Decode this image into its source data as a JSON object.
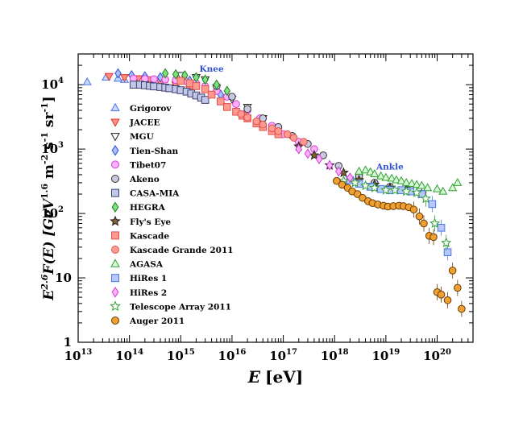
{
  "chart_data": {
    "type": "scatter",
    "title": "",
    "xlabel": "E",
    "xlabel_unit": "[eV]",
    "ylabel_prefix": "E",
    "ylabel_exp": "2.6",
    "ylabel_mid": "F(E) [GeV",
    "ylabel_unit_exp": "1.6",
    "ylabel_m": " m",
    "ylabel_m_exp": "-2",
    "ylabel_s": " s",
    "ylabel_s_exp": "-1",
    "ylabel_sr": " sr",
    "ylabel_sr_exp": "-1",
    "ylabel_close": "]",
    "xscale": "log",
    "yscale": "log",
    "xlim": [
      10000000000000.0,
      5e+20
    ],
    "ylim": [
      1,
      30000
    ],
    "x_ticks": [
      {
        "base": "10",
        "exp": "13",
        "value": 10000000000000.0
      },
      {
        "base": "10",
        "exp": "14",
        "value": 100000000000000.0
      },
      {
        "base": "10",
        "exp": "15",
        "value": 1000000000000000.0
      },
      {
        "base": "10",
        "exp": "16",
        "value": 1e+16
      },
      {
        "base": "10",
        "exp": "17",
        "value": 1e+17
      },
      {
        "base": "10",
        "exp": "18",
        "value": 1e+18
      },
      {
        "base": "10",
        "exp": "19",
        "value": 1e+19
      },
      {
        "base": "10",
        "exp": "20",
        "value": 1e+20
      }
    ],
    "y_ticks": [
      {
        "base": "1",
        "exp": "",
        "value": 1
      },
      {
        "base": "10",
        "exp": "",
        "value": 10
      },
      {
        "base": "10",
        "exp": "2",
        "value": 100
      },
      {
        "base": "10",
        "exp": "3",
        "value": 1000
      },
      {
        "base": "10",
        "exp": "4",
        "value": 10000
      }
    ],
    "annotations": [
      {
        "text": "Knee",
        "x": 4000000000000000.0,
        "y": 16000,
        "color": "#3050d0"
      },
      {
        "text": "Ankle",
        "x": 1.2e+19,
        "y": 480,
        "color": "#3050d0"
      }
    ],
    "legend_position": "left",
    "series": [
      {
        "name": "Grigorov",
        "marker": "triangle-up",
        "color": "#4a78e8",
        "fill": "#c8d8ff",
        "points": [
          [
            15000000000000.0,
            11000
          ],
          [
            35000000000000.0,
            13000
          ],
          [
            60000000000000.0,
            12500
          ],
          [
            80000000000000.0,
            12000
          ],
          [
            130000000000000.0,
            11000
          ]
        ]
      },
      {
        "name": "JACEE",
        "marker": "triangle-down",
        "color": "#e03030",
        "fill": "#ff9080",
        "points": [
          [
            40000000000000.0,
            13500
          ],
          [
            80000000000000.0,
            13000
          ],
          [
            150000000000000.0,
            12500
          ],
          [
            250000000000000.0,
            12000
          ],
          [
            400000000000000.0,
            11000
          ],
          [
            800000000000000.0,
            10000
          ],
          [
            1500000000000000.0,
            8500
          ]
        ]
      },
      {
        "name": "MGU",
        "marker": "triangle-down",
        "color": "#222222",
        "fill": "#ffffff",
        "points": [
          [
            1000000000000000.0,
            14000
          ],
          [
            2000000000000000.0,
            13000
          ],
          [
            3000000000000000.0,
            12000
          ],
          [
            5000000000000000.0,
            9000
          ],
          [
            1e+16,
            6000
          ],
          [
            2e+16,
            4500
          ],
          [
            4e+16,
            3000
          ]
        ]
      },
      {
        "name": "Tien-Shan",
        "marker": "diamond",
        "color": "#3050d0",
        "fill": "#a8c0ff",
        "points": [
          [
            60000000000000.0,
            15000
          ],
          [
            110000000000000.0,
            14000
          ],
          [
            200000000000000.0,
            13500
          ],
          [
            400000000000000.0,
            13000
          ],
          [
            800000000000000.0,
            12500
          ],
          [
            1500000000000000.0,
            11500
          ],
          [
            3000000000000000.0,
            9500
          ],
          [
            6000000000000000.0,
            7000
          ]
        ]
      },
      {
        "name": "Tibet07",
        "marker": "circle",
        "color": "#d040d0",
        "fill": "#ffb0ff",
        "points": [
          [
            120000000000000.0,
            12500
          ],
          [
            200000000000000.0,
            12300
          ],
          [
            300000000000000.0,
            12200
          ],
          [
            500000000000000.0,
            12000
          ],
          [
            800000000000000.0,
            11800
          ],
          [
            1200000000000000.0,
            11500
          ],
          [
            2000000000000000.0,
            10500
          ],
          [
            3000000000000000.0,
            9500
          ],
          [
            5000000000000000.0,
            8000
          ],
          [
            8000000000000000.0,
            6500
          ],
          [
            1.2e+16,
            5000
          ],
          [
            2e+16,
            4000
          ],
          [
            3.5e+16,
            3000
          ],
          [
            6e+16,
            2300
          ],
          [
            1e+17,
            1700
          ],
          [
            2e+17,
            1300
          ],
          [
            4e+17,
            1000
          ]
        ]
      },
      {
        "name": "Akeno",
        "marker": "circle",
        "color": "#333333",
        "fill": "#c8c8e0",
        "points": [
          [
            5000000000000000.0,
            9500
          ],
          [
            1e+16,
            6500
          ],
          [
            2e+16,
            4200
          ],
          [
            4e+16,
            3000
          ],
          [
            8e+16,
            2200
          ],
          [
            1.5e+17,
            1600
          ],
          [
            3e+17,
            1200
          ],
          [
            6e+17,
            800
          ],
          [
            1.2e+18,
            550
          ],
          [
            3e+18,
            380
          ],
          [
            6e+18,
            300
          ],
          [
            1.2e+19,
            260
          ]
        ]
      },
      {
        "name": "CASA-MIA",
        "marker": "square",
        "color": "#404070",
        "fill": "#c0c8e8",
        "points": [
          [
            120000000000000.0,
            10000
          ],
          [
            160000000000000.0,
            10000
          ],
          [
            200000000000000.0,
            9800
          ],
          [
            250000000000000.0,
            9600
          ],
          [
            300000000000000.0,
            9400
          ],
          [
            400000000000000.0,
            9200
          ],
          [
            500000000000000.0,
            9000
          ],
          [
            600000000000000.0,
            8800
          ],
          [
            800000000000000.0,
            8500
          ],
          [
            1000000000000000.0,
            8200
          ],
          [
            1300000000000000.0,
            7800
          ],
          [
            1600000000000000.0,
            7300
          ],
          [
            2000000000000000.0,
            6800
          ],
          [
            2500000000000000.0,
            6300
          ],
          [
            3000000000000000.0,
            5800
          ]
        ]
      },
      {
        "name": "HEGRA",
        "marker": "diamond",
        "color": "#208020",
        "fill": "#80e080",
        "points": [
          [
            500000000000000.0,
            15000
          ],
          [
            800000000000000.0,
            14500
          ],
          [
            1200000000000000.0,
            14000
          ],
          [
            2000000000000000.0,
            13000
          ],
          [
            3000000000000000.0,
            12000
          ],
          [
            5000000000000000.0,
            10000
          ],
          [
            8000000000000000.0,
            8000
          ]
        ]
      },
      {
        "name": "Fly's Eye",
        "marker": "star",
        "color": "#222222",
        "fill": "#806030",
        "points": [
          [
            2e+17,
            1100
          ],
          [
            4e+17,
            800
          ],
          [
            8e+17,
            560
          ],
          [
            1.5e+18,
            430
          ],
          [
            3e+18,
            330
          ],
          [
            6e+18,
            280
          ],
          [
            1.2e+19,
            250
          ],
          [
            2.5e+19,
            240
          ],
          [
            5e+19,
            200
          ]
        ]
      },
      {
        "name": "Kascade",
        "marker": "square",
        "color": "#e05050",
        "fill": "#ff9a90",
        "points": [
          [
            1000000000000000.0,
            11500
          ],
          [
            1500000000000000.0,
            10500
          ],
          [
            2000000000000000.0,
            9500
          ],
          [
            3000000000000000.0,
            8500
          ],
          [
            4000000000000000.0,
            7000
          ],
          [
            6000000000000000.0,
            5500
          ],
          [
            8000000000000000.0,
            4500
          ],
          [
            1.2e+16,
            3800
          ],
          [
            1.6e+16,
            3300
          ],
          [
            2e+16,
            3000
          ],
          [
            3e+16,
            2500
          ],
          [
            4e+16,
            2200
          ],
          [
            6e+16,
            1900
          ],
          [
            8e+16,
            1700
          ]
        ]
      },
      {
        "name": "Kascade Grande 2011",
        "marker": "circle",
        "color": "#e05050",
        "fill": "#ff9a90",
        "points": [
          [
            1.5e+16,
            3500
          ],
          [
            2e+16,
            3100
          ],
          [
            3e+16,
            2700
          ],
          [
            4e+16,
            2400
          ],
          [
            6e+16,
            2100
          ],
          [
            8e+16,
            1900
          ],
          [
            1.2e+17,
            1700
          ],
          [
            1.6e+17,
            1500
          ],
          [
            2.5e+17,
            1300
          ]
        ]
      },
      {
        "name": "AGASA",
        "marker": "triangle-up",
        "color": "#30a030",
        "fill": "#d8f8d8",
        "points": [
          [
            3e+18,
            450
          ],
          [
            4e+18,
            470
          ],
          [
            5e+18,
            440
          ],
          [
            6e+18,
            410
          ],
          [
            8e+18,
            380
          ],
          [
            1e+19,
            360
          ],
          [
            1.3e+19,
            350
          ],
          [
            1.6e+19,
            330
          ],
          [
            2e+19,
            320
          ],
          [
            2.5e+19,
            300
          ],
          [
            3.2e+19,
            290
          ],
          [
            4e+19,
            280
          ],
          [
            5e+19,
            270
          ],
          [
            6.5e+19,
            250
          ],
          [
            1e+20,
            240
          ],
          [
            1.3e+20,
            220
          ],
          [
            2e+20,
            250
          ],
          [
            2.5e+20,
            300
          ]
        ]
      },
      {
        "name": "HiRes 1",
        "marker": "square",
        "color": "#4a78e8",
        "fill": "#b8c8ff",
        "points": [
          [
            2e+18,
            330
          ],
          [
            3e+18,
            290
          ],
          [
            5e+18,
            260
          ],
          [
            8e+18,
            240
          ],
          [
            1.2e+19,
            230
          ],
          [
            2e+19,
            230
          ],
          [
            3e+19,
            220
          ],
          [
            5e+19,
            200
          ],
          [
            8e+19,
            140
          ],
          [
            1.2e+20,
            60
          ],
          [
            1.6e+20,
            25
          ]
        ]
      },
      {
        "name": "HiRes 2",
        "marker": "diamond",
        "color": "#d040d0",
        "fill": "#ffb0ff",
        "points": [
          [
            2e+17,
            1000
          ],
          [
            3e+17,
            850
          ],
          [
            5e+17,
            700
          ],
          [
            8e+17,
            560
          ],
          [
            1.2e+18,
            450
          ],
          [
            2e+18,
            360
          ]
        ]
      },
      {
        "name": "Telescope Array 2011",
        "marker": "star",
        "color": "#30a030",
        "fill": "#ffffff",
        "points": [
          [
            1.5e+18,
            320
          ],
          [
            2.5e+18,
            300
          ],
          [
            4e+18,
            270
          ],
          [
            6e+18,
            250
          ],
          [
            1e+19,
            230
          ],
          [
            1.5e+19,
            230
          ],
          [
            2.5e+19,
            220
          ],
          [
            4e+19,
            210
          ],
          [
            6e+19,
            170
          ],
          [
            9e+19,
            70
          ],
          [
            1.5e+20,
            35
          ]
        ]
      },
      {
        "name": "Auger 2011",
        "marker": "circle",
        "color": "#6a3a00",
        "fill": "#f0a030",
        "points": [
          [
            1.1e+18,
            320
          ],
          [
            1.4e+18,
            280
          ],
          [
            1.8e+18,
            250
          ],
          [
            2.2e+18,
            220
          ],
          [
            2.8e+18,
            200
          ],
          [
            3.5e+18,
            175
          ],
          [
            4.5e+18,
            155
          ],
          [
            5.5e+18,
            145
          ],
          [
            7e+18,
            138
          ],
          [
            9e+18,
            132
          ],
          [
            1.1e+19,
            128
          ],
          [
            1.4e+19,
            130
          ],
          [
            1.8e+19,
            132
          ],
          [
            2.2e+19,
            130
          ],
          [
            2.8e+19,
            125
          ],
          [
            3.5e+19,
            115
          ],
          [
            4.5e+19,
            90
          ],
          [
            5.5e+19,
            70
          ],
          [
            7e+19,
            45
          ],
          [
            8.5e+19,
            43
          ],
          [
            1e+20,
            6
          ],
          [
            1.2e+20,
            5.5
          ],
          [
            1.6e+20,
            4.5
          ],
          [
            2e+20,
            13
          ],
          [
            2.5e+20,
            7
          ],
          [
            3e+20,
            3.3
          ]
        ]
      }
    ]
  }
}
